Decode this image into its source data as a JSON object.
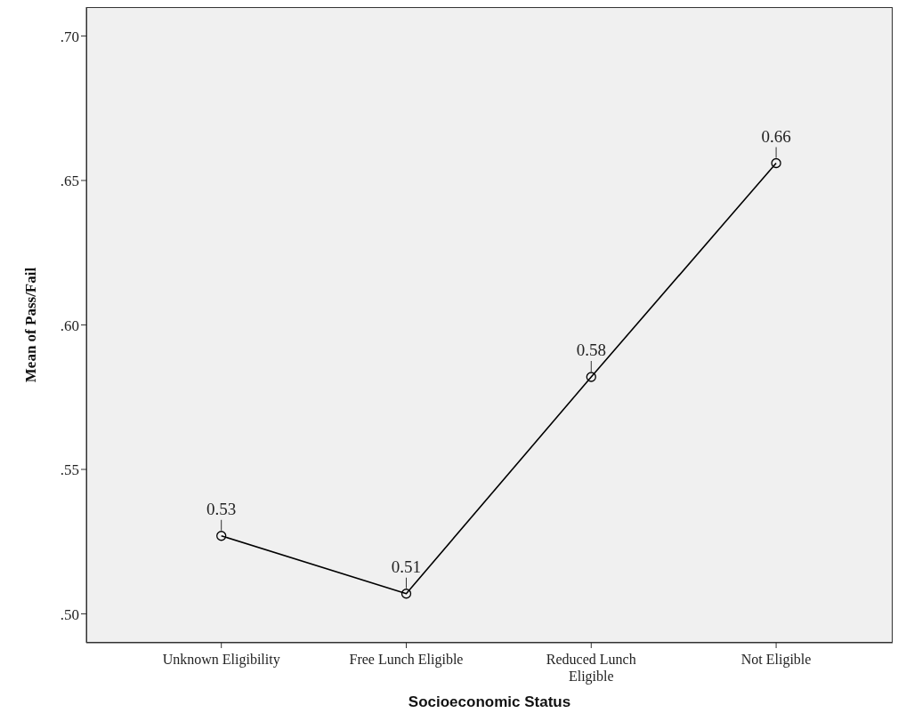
{
  "chart_data": {
    "type": "line",
    "xlabel": "Socioeconomic Status",
    "ylabel": "Mean of Pass/Fail",
    "categories": [
      "Unknown Eligibility",
      "Free Lunch Eligible",
      "Reduced Lunch Eligible",
      "Not Eligible"
    ],
    "series": [
      {
        "color": "#000000",
        "values": [
          0.527,
          0.507,
          0.582,
          0.656
        ],
        "value_labels": [
          "0.53",
          "0.51",
          "0.58",
          "0.66"
        ]
      }
    ],
    "ylim": [
      0.49,
      0.71
    ],
    "yticks": [
      {
        "value": 0.5,
        "label": ".50"
      },
      {
        "value": 0.55,
        "label": ".55"
      },
      {
        "value": 0.6,
        "label": ".60"
      },
      {
        "value": 0.65,
        "label": ".65"
      },
      {
        "value": 0.7,
        "label": ".70"
      }
    ],
    "grid": false,
    "legend": false,
    "marker": "circle",
    "line_style": "solid"
  }
}
